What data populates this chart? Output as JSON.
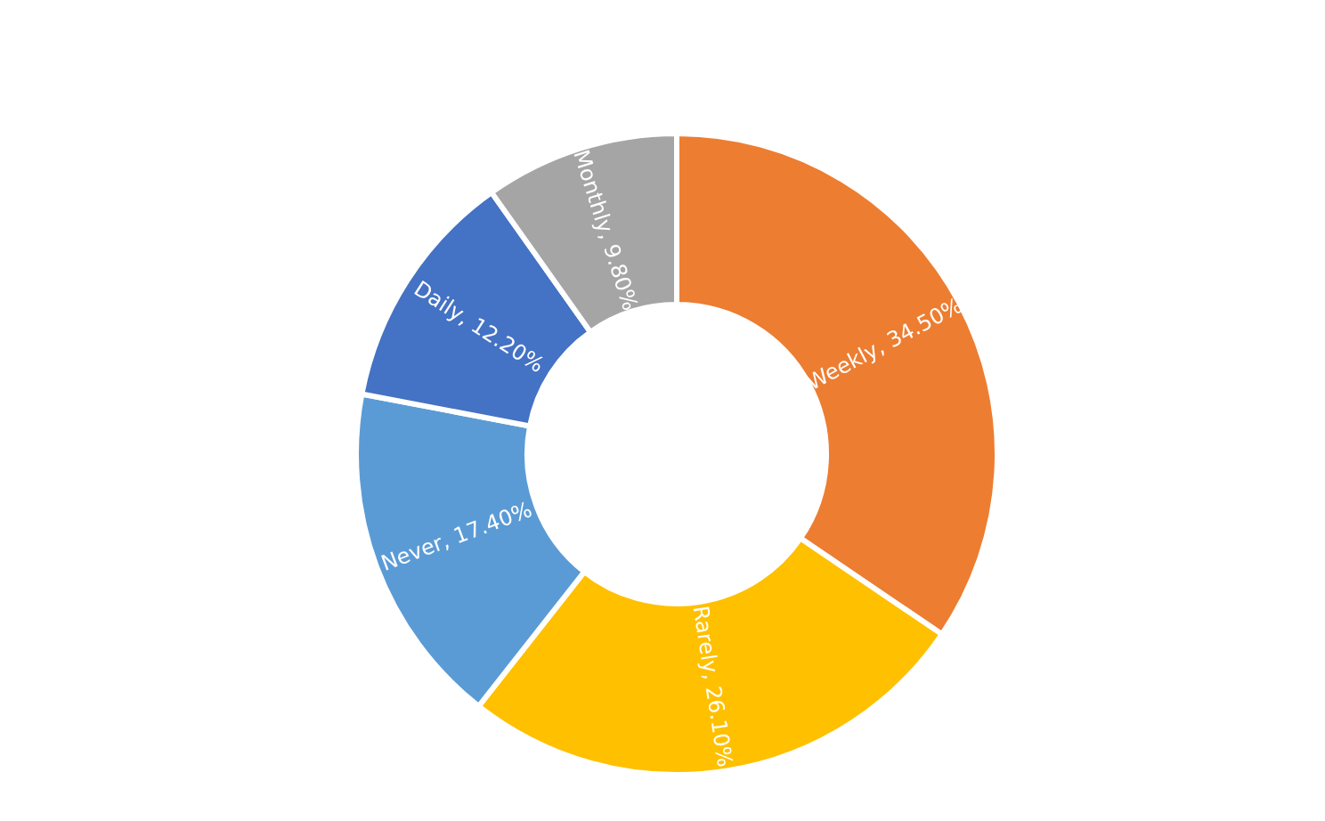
{
  "chart_data": {
    "type": "donut",
    "categories": [
      "Weekly",
      "Rarely",
      "Never",
      "Daily",
      "Monthly"
    ],
    "values": [
      34.5,
      26.1,
      17.4,
      12.2,
      9.8
    ],
    "value_labels": [
      "34.50%",
      "26.10%",
      "17.40%",
      "12.20%",
      "9.80%"
    ],
    "colors": [
      "#ed7d31",
      "#ffc000",
      "#5b9bd5",
      "#4472c4",
      "#a5a5a5"
    ]
  }
}
